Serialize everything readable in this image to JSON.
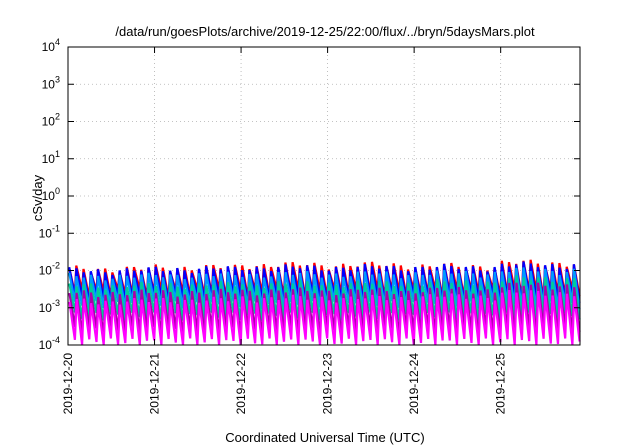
{
  "chart_data": {
    "type": "line",
    "title": "/data/run/goesPlots/archive/2019-12-25/22:00/flux/../bryn/5daysMars.plot",
    "xlabel": "Coordinated Universal Time (UTC)",
    "ylabel": "cSv/day",
    "y_scale": "log",
    "ylim": [
      0.0001,
      10000
    ],
    "xlim": [
      "2019-12-20T00:00",
      "2019-12-25T22:00"
    ],
    "grid": true,
    "legend": "none",
    "y_ticks": [
      {
        "value": 0.0001,
        "base": "10",
        "exp": "-4"
      },
      {
        "value": 0.001,
        "base": "10",
        "exp": "-3"
      },
      {
        "value": 0.01,
        "base": "10",
        "exp": "-2"
      },
      {
        "value": 0.1,
        "base": "10",
        "exp": "-1"
      },
      {
        "value": 1,
        "base": "10",
        "exp": "0"
      },
      {
        "value": 10,
        "base": "10",
        "exp": "1"
      },
      {
        "value": 100,
        "base": "10",
        "exp": "2"
      },
      {
        "value": 1000,
        "base": "10",
        "exp": "3"
      },
      {
        "value": 10000,
        "base": "10",
        "exp": "4"
      }
    ],
    "x_ticks": [
      "2019-12-20",
      "2019-12-21",
      "2019-12-22",
      "2019-12-23",
      "2019-12-24",
      "2019-12-25"
    ],
    "x_tick_day_index": [
      0,
      1,
      2,
      3,
      4,
      5
    ],
    "x_end_day_index": 5.9167,
    "cycles_per_day": 12,
    "series": [
      {
        "color": "#ff0000",
        "peak_values": [
          0.011,
          0.012,
          0.014,
          0.014,
          0.013,
          0.016
        ],
        "trough_value": 0.0025
      },
      {
        "color": "#0000ff",
        "peak_values": [
          0.01,
          0.011,
          0.012,
          0.012,
          0.012,
          0.014
        ],
        "trough_value": 0.0018
      },
      {
        "color": "#0099ff",
        "peak_values": [
          0.007,
          0.0075,
          0.008,
          0.008,
          0.0085,
          0.01
        ],
        "trough_value": 0.0012
      },
      {
        "color": "#00cc99",
        "peak_values": [
          0.004,
          0.0042,
          0.0045,
          0.0045,
          0.0048,
          0.006
        ],
        "trough_value": 0.0006
      },
      {
        "color": "#aa00aa",
        "peak_values": [
          0.0025,
          0.0026,
          0.0028,
          0.0028,
          0.003,
          0.004
        ],
        "trough_value": 0.00025
      },
      {
        "color": "#ff00ff",
        "peak_values": [
          0.0015,
          0.0016,
          0.0018,
          0.0018,
          0.002,
          0.0025
        ],
        "trough_value": 0.00012
      }
    ]
  }
}
